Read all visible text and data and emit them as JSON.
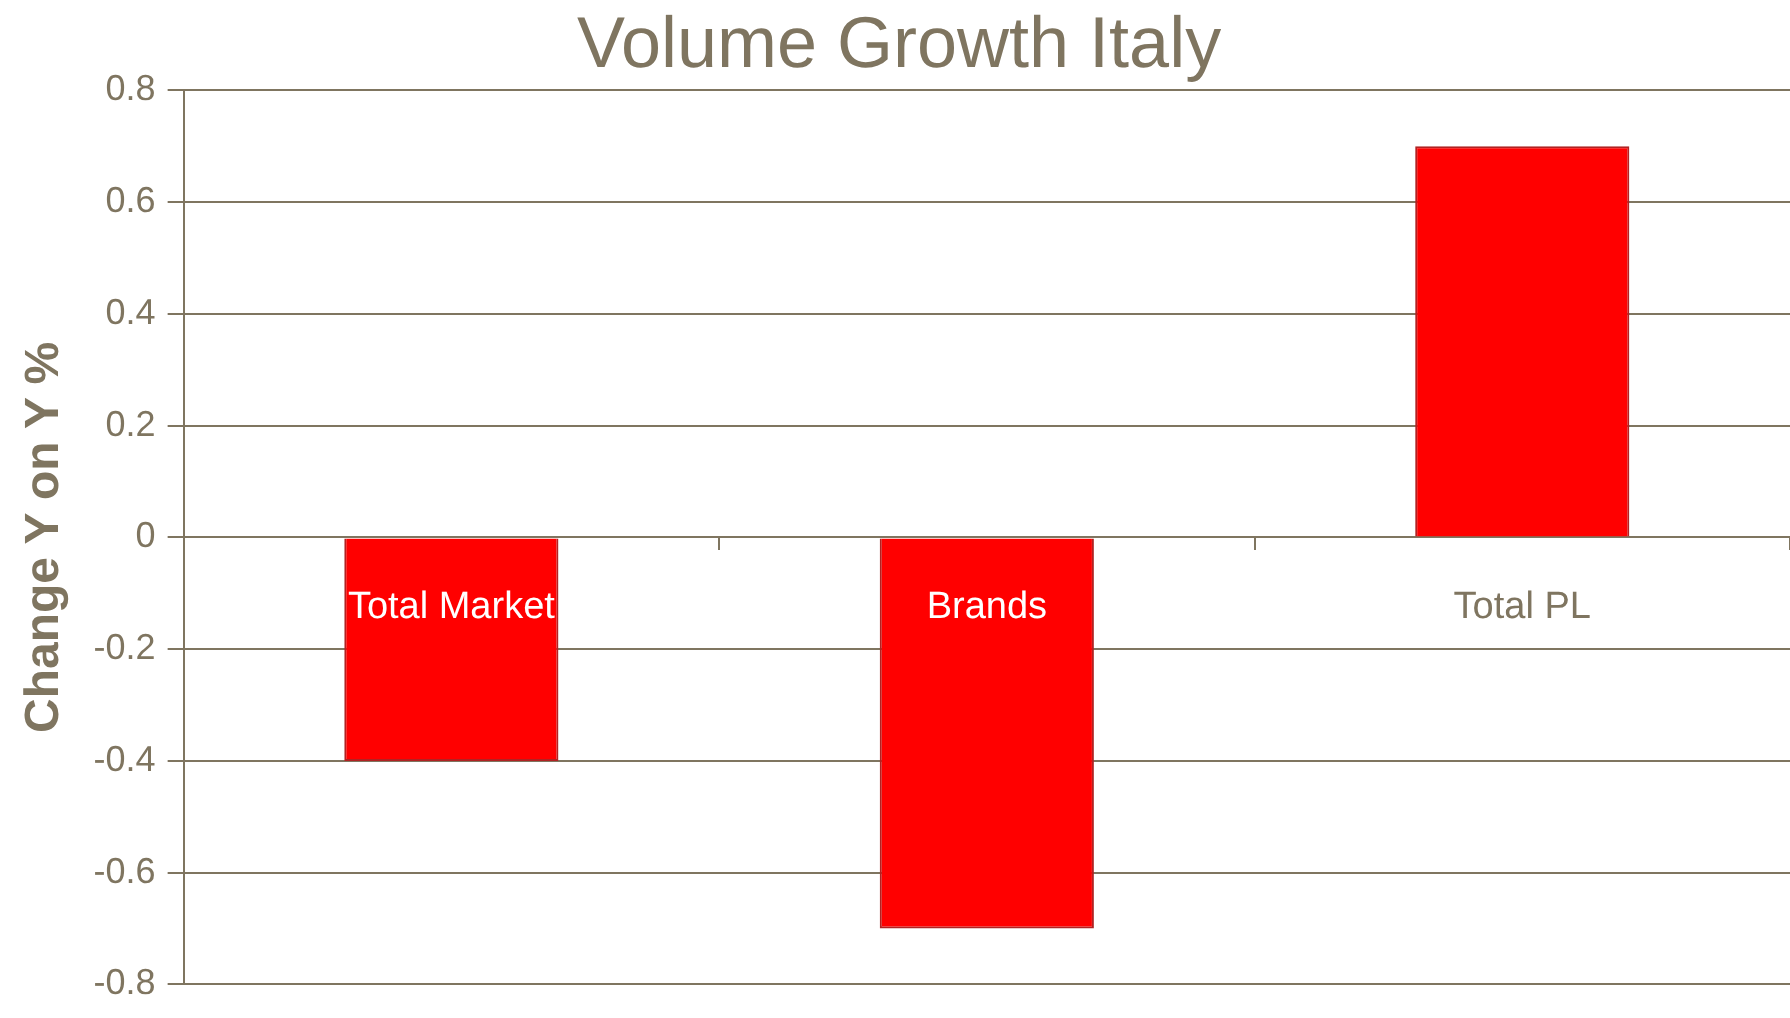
{
  "chart_data": {
    "type": "bar",
    "title": "Volume Growth Italy",
    "ylabel": "Change Y on Y %",
    "categories": [
      "Total Market",
      "Brands",
      "Total PL"
    ],
    "values": [
      -0.4,
      -0.7,
      0.7
    ],
    "color": "#ff0000",
    "ylim": [
      -0.8,
      0.8
    ],
    "yticks": [
      -0.8,
      -0.6,
      -0.4,
      -0.2,
      0,
      0.2,
      0.4,
      0.6,
      0.8
    ],
    "grid": "y",
    "legend": false
  }
}
